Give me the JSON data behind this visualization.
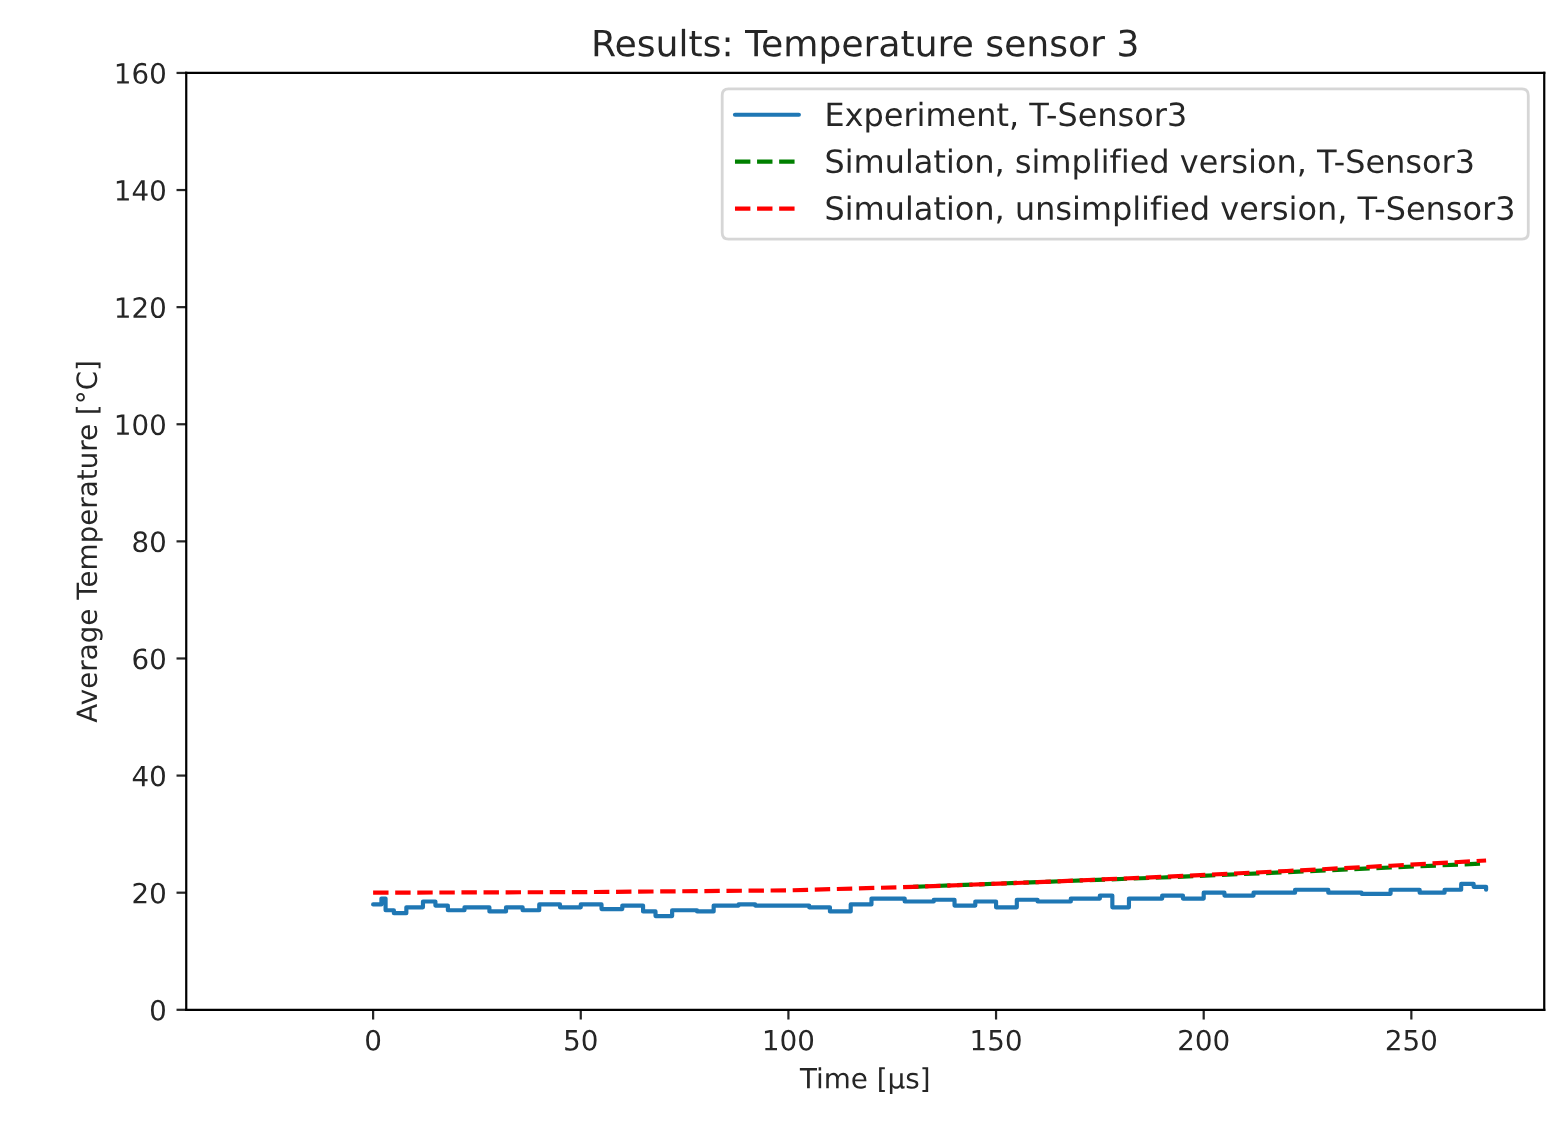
{
  "chart_data": {
    "type": "line",
    "title": "Results: Temperature sensor 3",
    "xlabel": "Time [µs]",
    "ylabel": "Average Temperature [°C]",
    "xlim": [
      -45,
      282
    ],
    "ylim": [
      0,
      160
    ],
    "xticks": [
      0,
      50,
      100,
      150,
      200,
      250
    ],
    "yticks": [
      0,
      20,
      40,
      60,
      80,
      100,
      120,
      140,
      160
    ],
    "grid": false,
    "legend": "top right",
    "series": [
      {
        "name": "Experiment, T-Sensor3",
        "color": "#1f77b4",
        "type": "step",
        "line_style": "solid",
        "x": [
          0,
          2,
          3,
          5,
          8,
          12,
          15,
          18,
          22,
          28,
          32,
          36,
          40,
          45,
          50,
          55,
          60,
          65,
          68,
          72,
          78,
          82,
          88,
          92,
          100,
          105,
          110,
          115,
          120,
          128,
          135,
          140,
          145,
          150,
          155,
          160,
          168,
          175,
          178,
          182,
          190,
          195,
          200,
          205,
          212,
          222,
          230,
          238,
          245,
          252,
          258,
          262,
          265,
          268
        ],
        "values": [
          18,
          19,
          17,
          16.5,
          17.5,
          18.5,
          17.8,
          17,
          17.5,
          16.8,
          17.5,
          17,
          18,
          17.5,
          18,
          17.2,
          17.8,
          16.8,
          16,
          17,
          16.8,
          17.8,
          18,
          17.8,
          17.8,
          17.5,
          16.8,
          18,
          19,
          18.5,
          18.8,
          17.8,
          18.5,
          17.5,
          18.8,
          18.5,
          19,
          19.5,
          17.5,
          19,
          19.5,
          19,
          20,
          19.5,
          20,
          20.5,
          20,
          19.8,
          20.5,
          20,
          20.5,
          21.5,
          21,
          20.5
        ]
      },
      {
        "name": "Simulation, simplified version, T-Sensor3",
        "color": "#008000",
        "line_style": "dashed",
        "x": [
          130,
          160,
          190,
          220,
          245,
          268
        ],
        "values": [
          21,
          21.8,
          22.6,
          23.5,
          24.3,
          25
        ]
      },
      {
        "name": "Simulation, unsimplified version, T-Sensor3",
        "color": "#ff0000",
        "line_style": "dashed",
        "x": [
          0,
          50,
          100,
          130,
          160,
          190,
          220,
          245,
          268
        ],
        "values": [
          20,
          20.1,
          20.4,
          21,
          21.8,
          22.7,
          23.7,
          24.6,
          25.5
        ]
      }
    ]
  }
}
